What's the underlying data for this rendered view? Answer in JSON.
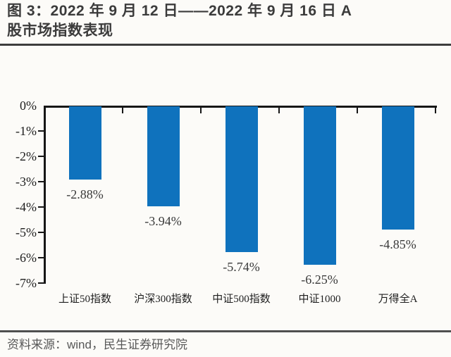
{
  "header": {
    "title_line1": "图 3：2022 年 9 月 12 日——2022 年 9 月 16 日 A",
    "title_line2": "股市场指数表现"
  },
  "footer": {
    "source": "资料来源：wind，民生证券研究院"
  },
  "colors": {
    "background": "#fcfbf8",
    "bar": "#0f72bd",
    "title": "#3b3b3b",
    "rule": "#3d3d3d",
    "axis": "#161616",
    "axisText": "#1f1f1f",
    "valueText": "#3a3a3a",
    "footerRule": "#4f4f4f",
    "footerText": "#585858"
  },
  "chart_data": {
    "type": "bar",
    "title": "图 3：2022 年 9 月 12 日——2022 年 9 月 16 日 A股市场指数表现",
    "categories": [
      "上证50指数",
      "沪深300指数",
      "中证500指数",
      "中证1000",
      "万得全A"
    ],
    "values": [
      -2.88,
      -3.94,
      -5.74,
      -6.25,
      -4.85
    ],
    "value_labels": [
      "-2.88%",
      "-3.94%",
      "-5.74%",
      "-6.25%",
      "-4.85%"
    ],
    "xlabel": "",
    "ylabel": "",
    "ylim": [
      -7,
      0
    ],
    "yticks": [
      "0%",
      "-1%",
      "-2%",
      "-3%",
      "-4%",
      "-5%",
      "-6%",
      "-7%"
    ],
    "grid": false,
    "legend": false,
    "bar_color": "#0f72bd"
  }
}
